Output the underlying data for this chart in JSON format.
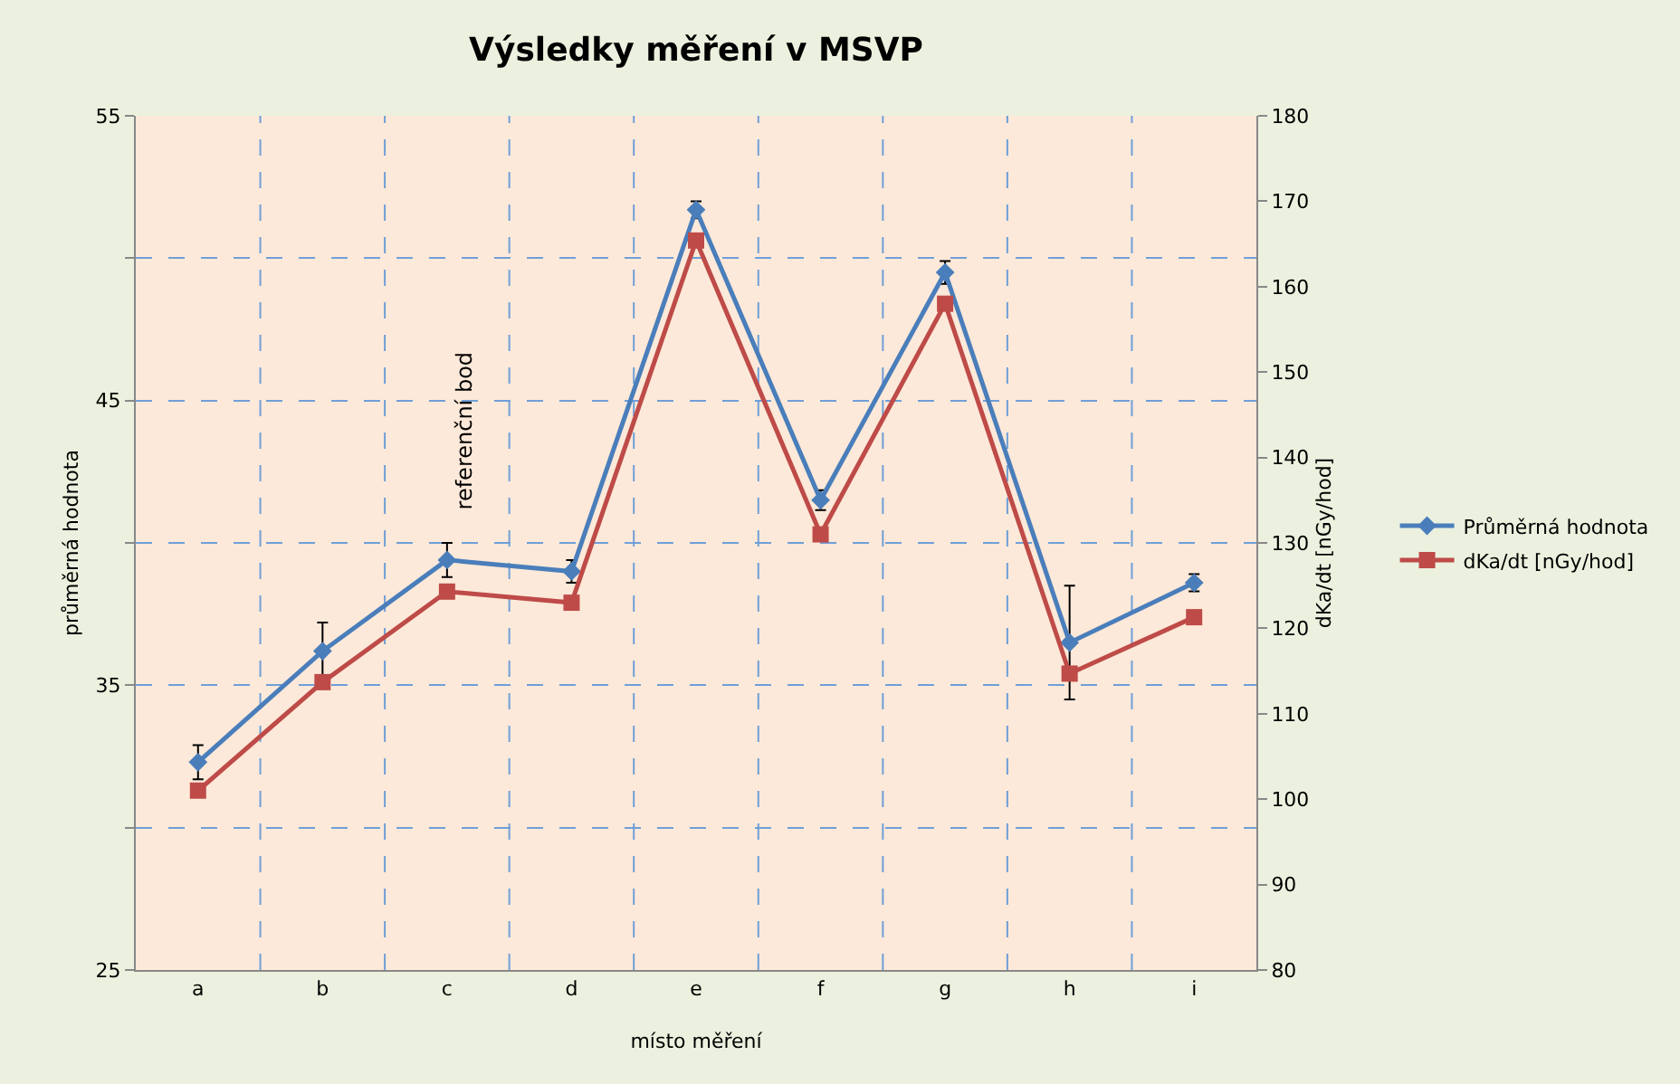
{
  "chart_data": {
    "type": "line",
    "title": "Výsledky měření v MSVP",
    "xlabel": "místo měření",
    "ylabel": "průměrná hodnota",
    "y2label": "dKa/dt [nGy/hod]",
    "categories": [
      "a",
      "b",
      "c",
      "d",
      "e",
      "f",
      "g",
      "h",
      "i"
    ],
    "series": [
      {
        "name": "Průměrná hodnota",
        "color": "#4a7ebb",
        "marker": "diamond",
        "values": [
          32.3,
          36.2,
          39.4,
          39.0,
          51.7,
          41.5,
          49.5,
          36.5,
          38.6
        ],
        "errors": [
          0.6,
          1.0,
          0.6,
          0.4,
          0.3,
          0.35,
          0.4,
          2.0,
          0.3
        ]
      },
      {
        "name": "dKa/dt [nGy/hod]",
        "color": "#be4b48",
        "marker": "square",
        "axis": "y2",
        "values": [
          101,
          113.7,
          124.3,
          123,
          165.4,
          131,
          158,
          114.7,
          121.3
        ]
      }
    ],
    "ylim": [
      25,
      55
    ],
    "yticks": [
      25,
      {
        "value": 30,
        "label": null
      },
      35,
      {
        "value": 40,
        "label": null
      },
      45,
      {
        "value": 50,
        "label": null
      },
      55
    ],
    "y2lim": [
      80,
      180
    ],
    "y2ticks": [
      80,
      90,
      100,
      110,
      120,
      130,
      140,
      150,
      160,
      170,
      180
    ],
    "annotations": [
      "referenční bod"
    ],
    "grid": true,
    "legend": "right",
    "line_style": "solid"
  }
}
